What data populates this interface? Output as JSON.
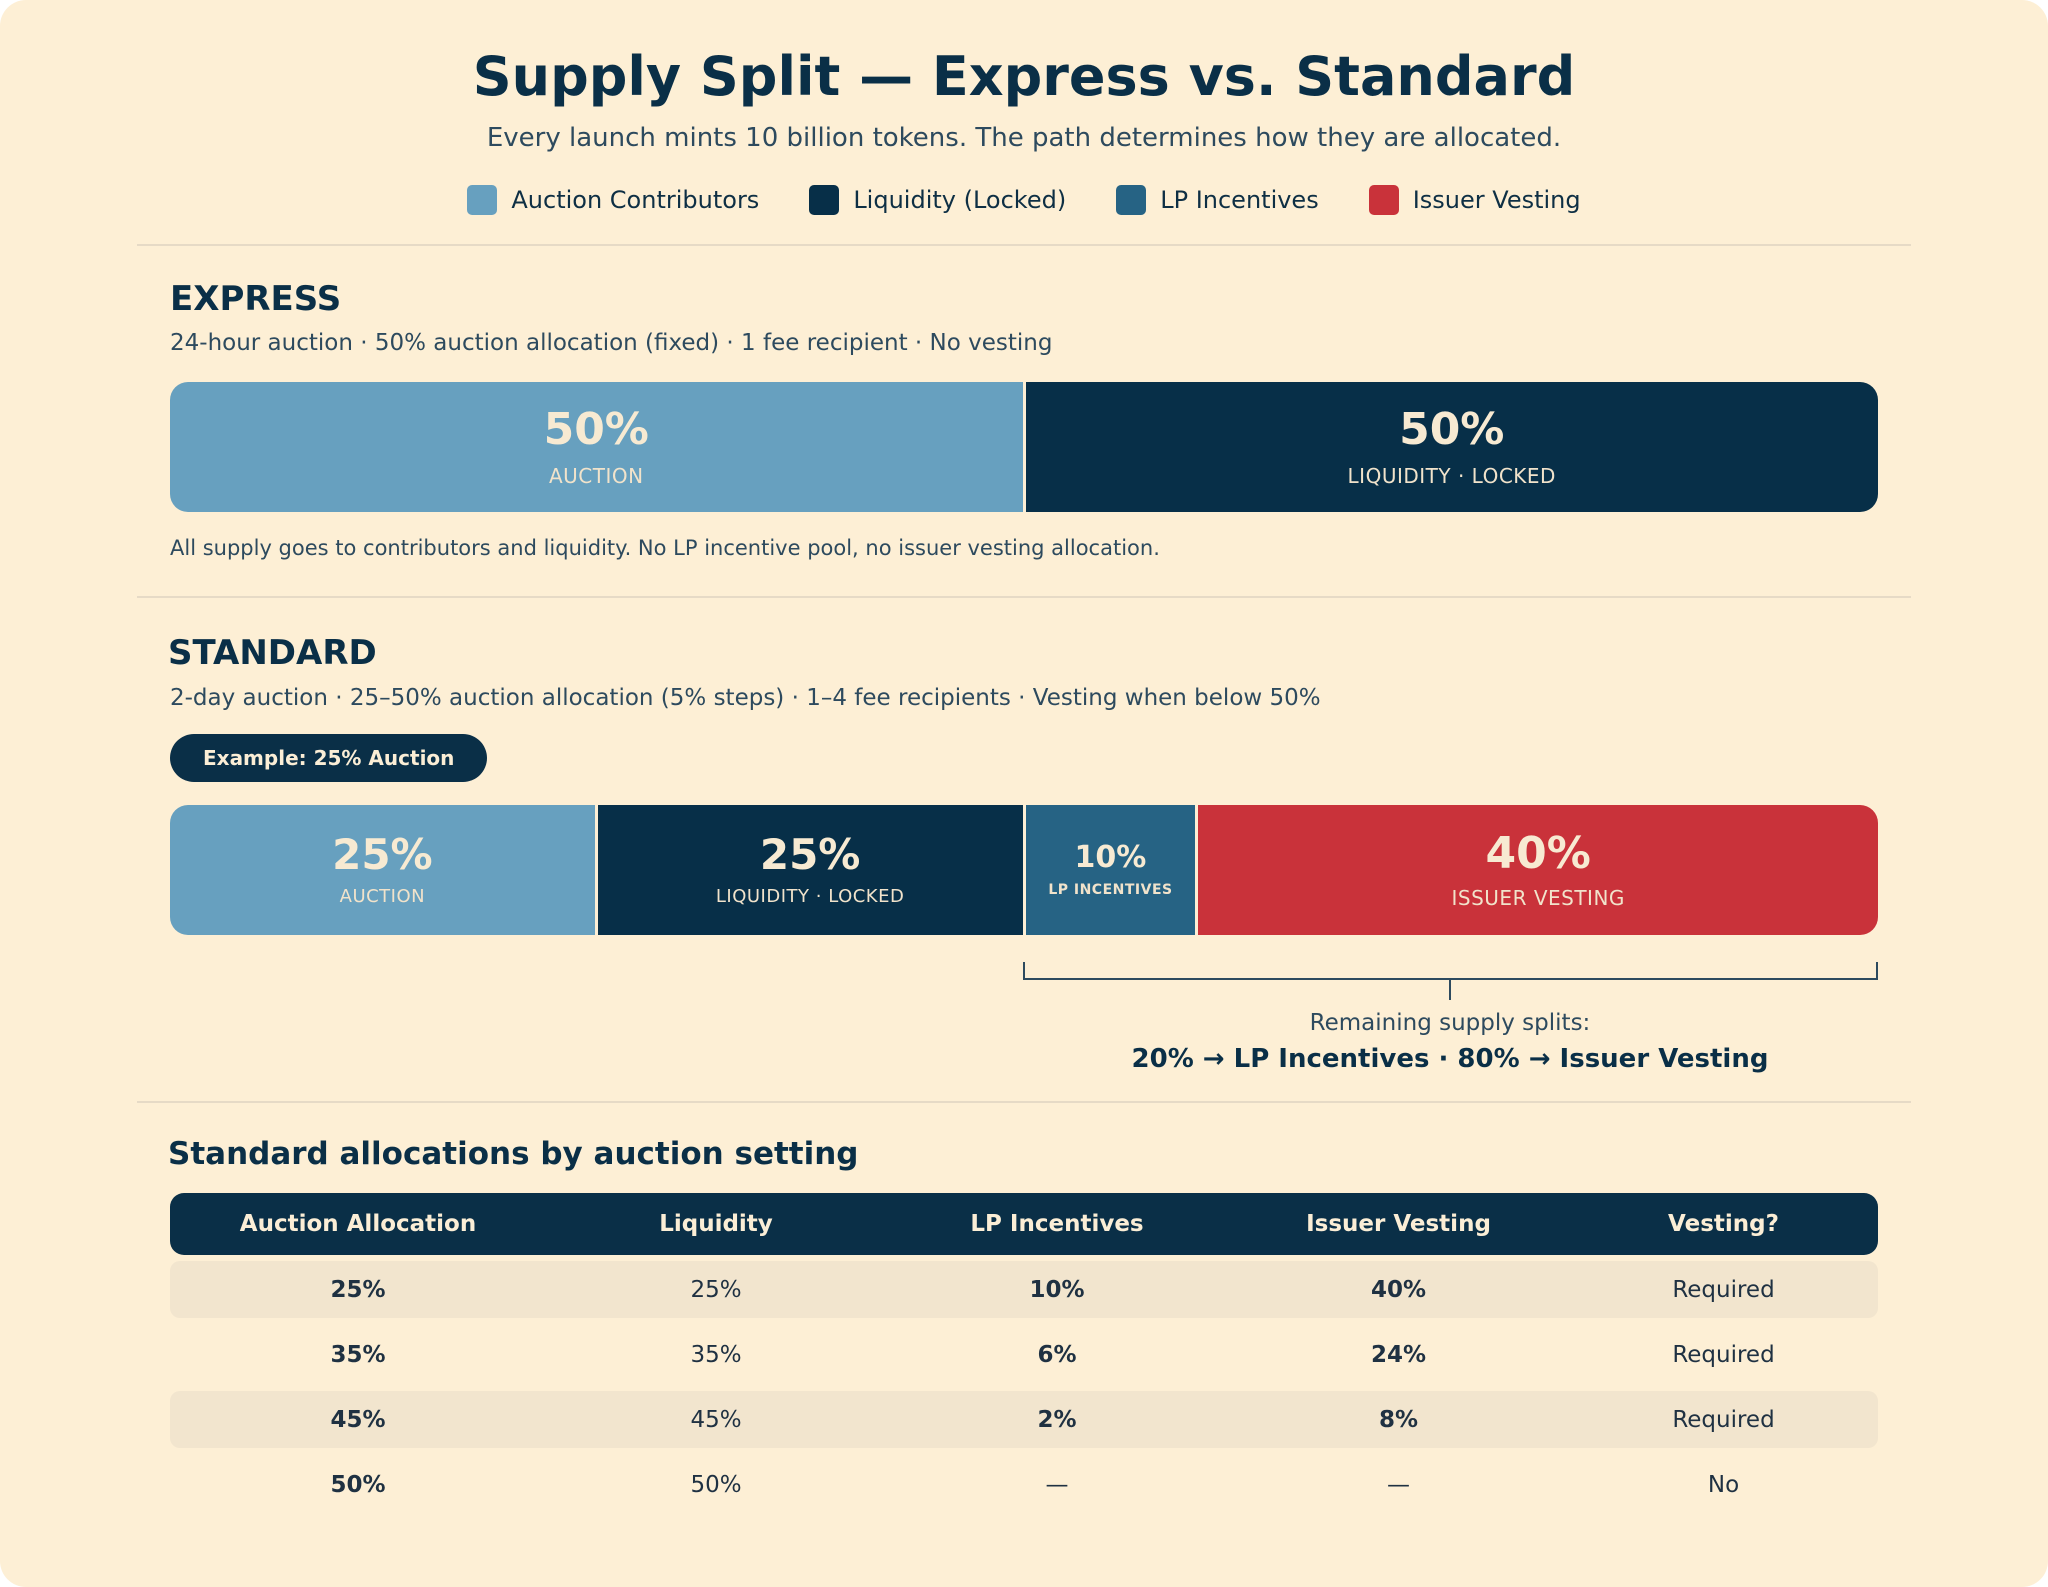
{
  "header": {
    "title": "Supply Split — Express vs. Standard",
    "subtitle": "Every launch mints 10 billion tokens. The path determines how they are allocated."
  },
  "legend": [
    {
      "label": "Auction Contributors",
      "color": "#67a0bf"
    },
    {
      "label": "Liquidity (Locked)",
      "color": "#072f48"
    },
    {
      "label": "LP Incentives",
      "color": "#266384"
    },
    {
      "label": "Issuer Vesting",
      "color": "#c9323a"
    }
  ],
  "express": {
    "title": "EXPRESS",
    "description": "24-hour auction · 50% auction allocation (fixed) · 1 fee recipient · No vesting",
    "segments": [
      {
        "percent": "50%",
        "label": "AUCTION",
        "share": 50,
        "color": "#67a0bf"
      },
      {
        "percent": "50%",
        "label": "LIQUIDITY · LOCKED",
        "share": 50,
        "color": "#072f48"
      }
    ],
    "note": "All supply goes to contributors and liquidity. No LP incentive pool, no issuer vesting allocation."
  },
  "standard": {
    "title": "STANDARD",
    "description": "2-day auction · 25–50% auction allocation (5% steps) · 1–4 fee recipients · Vesting when below 50%",
    "example_label": "Example: 25% Auction",
    "segments": [
      {
        "percent": "25%",
        "label": "AUCTION",
        "share": 25,
        "color": "#67a0bf"
      },
      {
        "percent": "25%",
        "label": "LIQUIDITY · LOCKED",
        "share": 25,
        "color": "#072f48"
      },
      {
        "percent": "10%",
        "label": "LP INCENTIVES",
        "share": 10,
        "color": "#266384"
      },
      {
        "percent": "40%",
        "label": "ISSUER VESTING",
        "share": 40,
        "color": "#c9323a"
      }
    ],
    "remaining_label": "Remaining supply splits:",
    "remaining_detail": "20% → LP Incentives · 80% → Issuer Vesting"
  },
  "table": {
    "title": "Standard allocations by auction setting",
    "columns": [
      "Auction Allocation",
      "Liquidity",
      "LP Incentives",
      "Issuer Vesting",
      "Vesting?"
    ],
    "rows": [
      [
        "25%",
        "25%",
        "10%",
        "40%",
        "Required"
      ],
      [
        "35%",
        "35%",
        "6%",
        "24%",
        "Required"
      ],
      [
        "45%",
        "45%",
        "2%",
        "8%",
        "Required"
      ],
      [
        "50%",
        "50%",
        "—",
        "—",
        "No"
      ]
    ]
  }
}
